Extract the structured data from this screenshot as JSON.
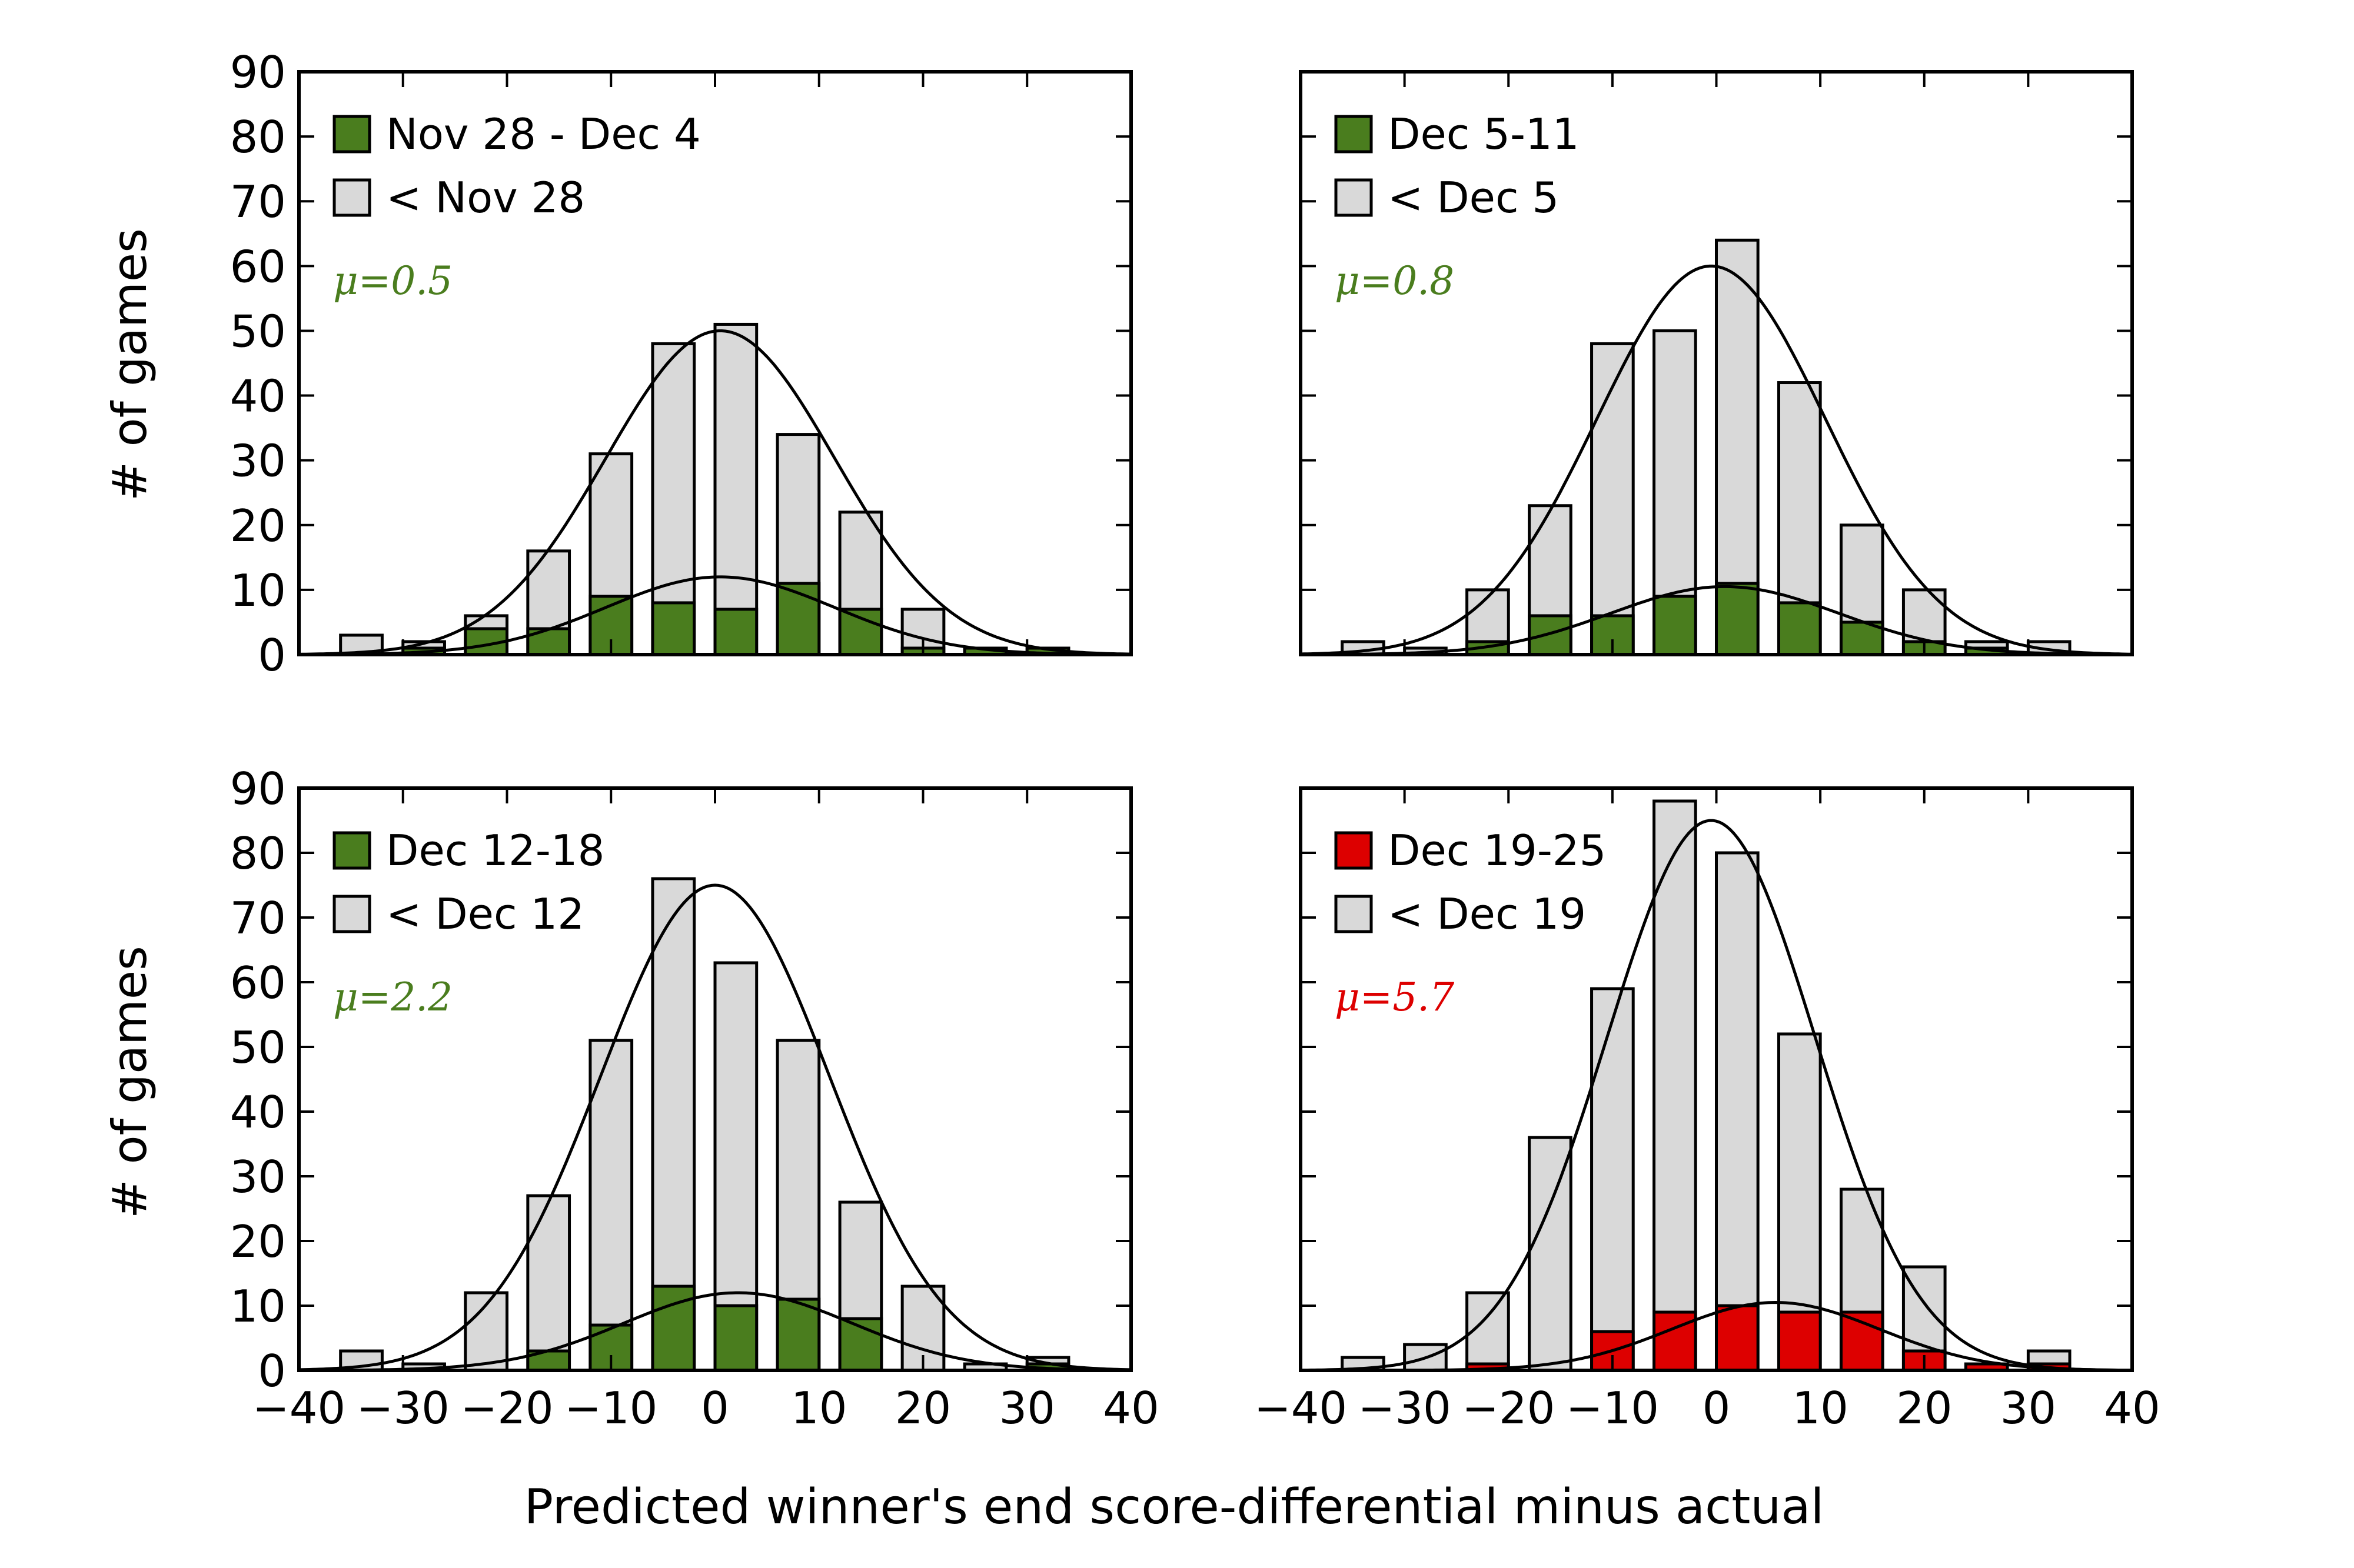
{
  "figure": {
    "xlabel": "Predicted winner's end score-differential minus actual",
    "ylabel": "# of games"
  },
  "colors": {
    "green": "#4a7d1e",
    "red": "#dd0000",
    "grey": "#d9d9d9",
    "line": "#000000"
  },
  "chart_data": [
    {
      "type": "bar",
      "position": "top-left",
      "xlim": [
        -40,
        40
      ],
      "ylim": [
        0,
        90
      ],
      "xticks": [
        "−40",
        "−30",
        "−20",
        "−10",
        "0",
        "10",
        "20",
        "30",
        "40"
      ],
      "yticks": [
        "0",
        "10",
        "20",
        "30",
        "40",
        "50",
        "60",
        "70",
        "80",
        "90"
      ],
      "show_xticklabels": false,
      "show_yticklabels": true,
      "x": [
        -34,
        -28,
        -22,
        -16,
        -10,
        -4,
        2,
        8,
        14,
        20,
        26,
        32
      ],
      "series": [
        {
          "name": "< Nov 28",
          "color": "grey",
          "values": [
            3,
            2,
            6,
            16,
            31,
            48,
            51,
            34,
            22,
            7,
            1,
            1
          ]
        },
        {
          "name": "Nov 28 - Dec 4",
          "color": "green",
          "values": [
            0,
            1,
            4,
            4,
            9,
            8,
            7,
            11,
            7,
            1,
            1,
            1
          ]
        }
      ],
      "fits": [
        {
          "mu": 0.5,
          "sigma": 11,
          "amplitude": 50
        },
        {
          "mu": 0.5,
          "sigma": 11,
          "amplitude": 12
        }
      ],
      "annotation": "μ=0.5",
      "annotation_color": "green",
      "legend": "top-left"
    },
    {
      "type": "bar",
      "position": "top-right",
      "xlim": [
        -40,
        40
      ],
      "ylim": [
        0,
        90
      ],
      "xticks": [
        "−40",
        "−30",
        "−20",
        "−10",
        "0",
        "10",
        "20",
        "30",
        "40"
      ],
      "yticks": [
        "0",
        "10",
        "20",
        "30",
        "40",
        "50",
        "60",
        "70",
        "80",
        "90"
      ],
      "show_xticklabels": false,
      "show_yticklabels": false,
      "x": [
        -34,
        -28,
        -22,
        -16,
        -10,
        -4,
        2,
        8,
        14,
        20,
        26,
        32
      ],
      "series": [
        {
          "name": "< Dec 5",
          "color": "grey",
          "values": [
            2,
            1,
            10,
            23,
            48,
            50,
            64,
            42,
            20,
            10,
            2,
            2
          ]
        },
        {
          "name": "Dec 5-11",
          "color": "green",
          "values": [
            0,
            0,
            2,
            6,
            6,
            9,
            11,
            8,
            5,
            2,
            1,
            0
          ]
        }
      ],
      "fits": [
        {
          "mu": -0.5,
          "sigma": 11,
          "amplitude": 60
        },
        {
          "mu": 0.8,
          "sigma": 11,
          "amplitude": 10.5
        }
      ],
      "annotation": "μ=0.8",
      "annotation_color": "green",
      "legend": "top-left"
    },
    {
      "type": "bar",
      "position": "bottom-left",
      "xlim": [
        -40,
        40
      ],
      "ylim": [
        0,
        90
      ],
      "xticks": [
        "−40",
        "−30",
        "−20",
        "−10",
        "0",
        "10",
        "20",
        "30",
        "40"
      ],
      "yticks": [
        "0",
        "10",
        "20",
        "30",
        "40",
        "50",
        "60",
        "70",
        "80",
        "90"
      ],
      "show_xticklabels": true,
      "show_yticklabels": true,
      "x": [
        -34,
        -28,
        -22,
        -16,
        -10,
        -4,
        2,
        8,
        14,
        20,
        26,
        32
      ],
      "series": [
        {
          "name": "< Dec 12",
          "color": "grey",
          "values": [
            3,
            1,
            12,
            27,
            51,
            76,
            63,
            51,
            26,
            13,
            1,
            2
          ]
        },
        {
          "name": "Dec 12-18",
          "color": "green",
          "values": [
            0,
            0,
            0,
            3,
            7,
            13,
            10,
            11,
            8,
            0,
            0,
            1
          ]
        }
      ],
      "fits": [
        {
          "mu": 0,
          "sigma": 11,
          "amplitude": 75
        },
        {
          "mu": 2.2,
          "sigma": 11,
          "amplitude": 12
        }
      ],
      "annotation": "μ=2.2",
      "annotation_color": "green",
      "legend": "top-left"
    },
    {
      "type": "bar",
      "position": "bottom-right",
      "xlim": [
        -40,
        40
      ],
      "ylim": [
        0,
        90
      ],
      "xticks": [
        "−40",
        "−30",
        "−20",
        "−10",
        "0",
        "10",
        "20",
        "30",
        "40"
      ],
      "yticks": [
        "0",
        "10",
        "20",
        "30",
        "40",
        "50",
        "60",
        "70",
        "80",
        "90"
      ],
      "show_xticklabels": true,
      "show_yticklabels": false,
      "x": [
        -34,
        -28,
        -22,
        -16,
        -10,
        -4,
        2,
        8,
        14,
        20,
        26,
        32
      ],
      "series": [
        {
          "name": "< Dec 19",
          "color": "grey",
          "values": [
            2,
            4,
            12,
            36,
            59,
            88,
            80,
            52,
            28,
            16,
            1,
            3
          ]
        },
        {
          "name": "Dec 19-25",
          "color": "red",
          "values": [
            0,
            0,
            1,
            0,
            6,
            9,
            10,
            9,
            9,
            3,
            1,
            1
          ]
        }
      ],
      "fits": [
        {
          "mu": -0.5,
          "sigma": 10,
          "amplitude": 85
        },
        {
          "mu": 5.7,
          "sigma": 10,
          "amplitude": 10.5
        }
      ],
      "annotation": "μ=5.7",
      "annotation_color": "red",
      "legend": "top-left"
    }
  ]
}
